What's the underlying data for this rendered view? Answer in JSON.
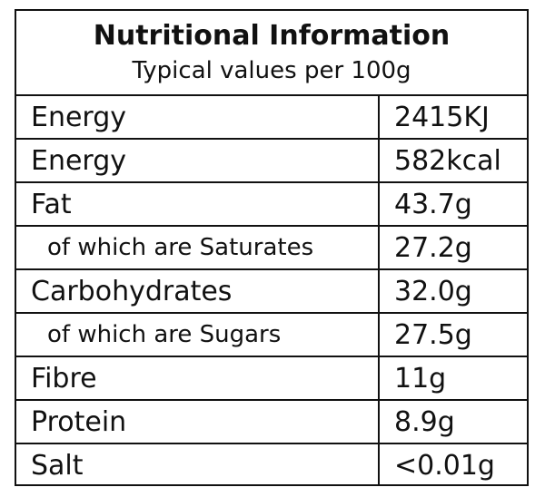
{
  "label": {
    "title": "Nutritional Information",
    "subtitle": "Typical values per 100g",
    "rows": [
      {
        "name": "Energy",
        "value": "2415KJ",
        "sub": false
      },
      {
        "name": "Energy",
        "value": "582kcal",
        "sub": false
      },
      {
        "name": "Fat",
        "value": "43.7g",
        "sub": false
      },
      {
        "name": "of which are Saturates",
        "value": "27.2g",
        "sub": true
      },
      {
        "name": "Carbohydrates",
        "value": "32.0g",
        "sub": false
      },
      {
        "name": "of which are Sugars",
        "value": "27.5g",
        "sub": true
      },
      {
        "name": "Fibre",
        "value": "11g",
        "sub": false
      },
      {
        "name": "Protein",
        "value": "8.9g",
        "sub": false
      },
      {
        "name": "Salt",
        "value": "<0.01g",
        "sub": false
      }
    ]
  }
}
